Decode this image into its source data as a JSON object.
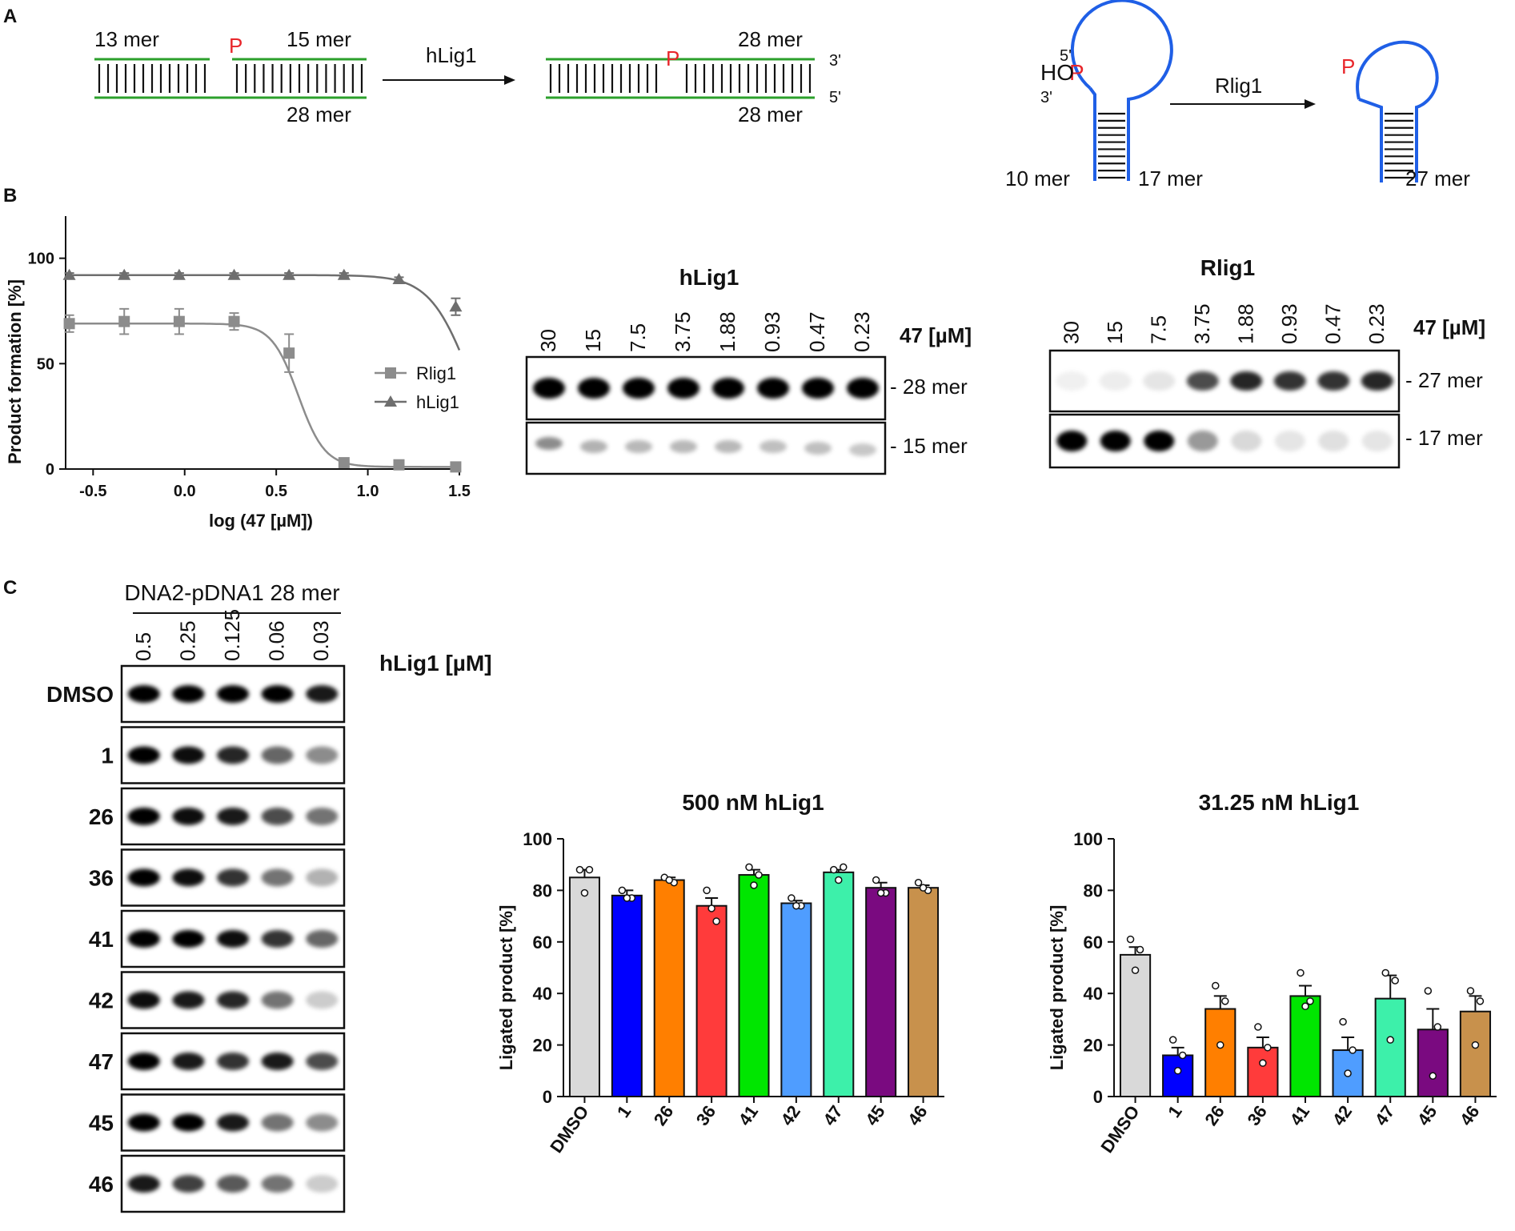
{
  "panel_labels": {
    "a": "A",
    "b": "B",
    "c": "C"
  },
  "scheme_hlig1": {
    "left_top_left": "13 mer",
    "left_top_right": "15 mer",
    "left_bottom": "28 mer",
    "phosphate": "P",
    "enzyme": "hLig1",
    "right_top": "28 mer",
    "right_bottom": "28 mer",
    "end_3": "3'",
    "end_5": "5'"
  },
  "scheme_rlig1": {
    "five_prime": "5'",
    "phosphate": "P",
    "hydroxyl": "HO",
    "three_prime": "3'",
    "left_arm": "10 mer",
    "right_arm": "17 mer",
    "enzyme": "Rlig1",
    "product": "27 mer"
  },
  "gel_hlig1": {
    "title": "hLig1",
    "conc_unit": "47 [µM]",
    "lanes": [
      "30",
      "15",
      "7.5",
      "3.75",
      "1.88",
      "0.93",
      "0.47",
      "0.23"
    ],
    "top_band": "- 28 mer",
    "bottom_band": "- 15 mer",
    "top_intensity": [
      1,
      1,
      1,
      1,
      1,
      1,
      1,
      1
    ],
    "bottom_intensity": [
      0.45,
      0.3,
      0.28,
      0.28,
      0.28,
      0.25,
      0.25,
      0.22
    ]
  },
  "gel_rlig1": {
    "title": "Rlig1",
    "conc_unit": "47 [µM]",
    "lanes": [
      "30",
      "15",
      "7.5",
      "3.75",
      "1.88",
      "0.93",
      "0.47",
      "0.23"
    ],
    "top_band": "- 27 mer",
    "bottom_band": "- 17 mer",
    "top_intensity": [
      0.06,
      0.07,
      0.1,
      0.7,
      0.85,
      0.8,
      0.8,
      0.85
    ],
    "bottom_intensity": [
      1,
      1,
      1,
      0.4,
      0.15,
      0.1,
      0.12,
      0.1
    ]
  },
  "gel_c": {
    "header": "DNA2-pDNA1 28 mer",
    "conc_unit": "hLig1 [µM]",
    "lanes": [
      "0.5",
      "0.25",
      "0.125",
      "0.06",
      "0.03"
    ],
    "rows": [
      {
        "label": "DMSO",
        "intensity": [
          1,
          1,
          1,
          1,
          0.9
        ]
      },
      {
        "label": "1",
        "intensity": [
          1,
          0.95,
          0.85,
          0.6,
          0.45
        ]
      },
      {
        "label": "26",
        "intensity": [
          1,
          0.95,
          0.9,
          0.7,
          0.55
        ]
      },
      {
        "label": "36",
        "intensity": [
          1,
          0.95,
          0.8,
          0.55,
          0.3
        ]
      },
      {
        "label": "41",
        "intensity": [
          1,
          1,
          0.95,
          0.8,
          0.6
        ]
      },
      {
        "label": "42",
        "intensity": [
          0.95,
          0.9,
          0.85,
          0.55,
          0.2
        ]
      },
      {
        "label": "47",
        "intensity": [
          1,
          0.9,
          0.8,
          0.9,
          0.7
        ]
      },
      {
        "label": "45",
        "intensity": [
          1,
          1,
          0.9,
          0.55,
          0.45
        ]
      },
      {
        "label": "46",
        "intensity": [
          0.9,
          0.75,
          0.65,
          0.55,
          0.2
        ]
      }
    ]
  },
  "chart_data": [
    {
      "type": "line",
      "title": "",
      "xlabel": "log (47 [µM])",
      "ylabel": "Product formation [%]",
      "xlim": [
        -0.65,
        1.5
      ],
      "ylim": [
        0,
        120
      ],
      "xticks": [
        "-0.5",
        "0.0",
        "0.5",
        "1.0",
        "1.5"
      ],
      "yticks": [
        "0",
        "50",
        "100"
      ],
      "legend_position": "center-right",
      "series": [
        {
          "name": "Rlig1",
          "color": "#8c8c8c",
          "marker": "square",
          "x": [
            -0.63,
            -0.33,
            -0.03,
            0.27,
            0.57,
            0.87,
            1.17,
            1.48
          ],
          "y": [
            69,
            70,
            70,
            70,
            55,
            3,
            2,
            1
          ],
          "err": [
            4,
            6,
            6,
            4,
            9,
            1,
            1,
            1
          ]
        },
        {
          "name": "hLig1",
          "color": "#6e6e6e",
          "marker": "triangle",
          "x": [
            -0.63,
            -0.33,
            -0.03,
            0.27,
            0.57,
            0.87,
            1.17,
            1.48
          ],
          "y": [
            92,
            92,
            92,
            92,
            92,
            92,
            90,
            77
          ],
          "err": [
            1,
            1,
            1,
            1,
            1,
            1,
            1,
            4
          ]
        }
      ]
    },
    {
      "type": "bar",
      "title": "500 nM hLig1",
      "xlabel": "",
      "ylabel": "Ligated product [%]",
      "ylim": [
        0,
        100
      ],
      "yticks": [
        "0",
        "20",
        "40",
        "60",
        "80",
        "100"
      ],
      "categories": [
        "DMSO",
        "1",
        "26",
        "36",
        "41",
        "42",
        "47",
        "45",
        "46"
      ],
      "colors": [
        "#d9d9d9",
        "#0000ff",
        "#ff7f00",
        "#ff3b3b",
        "#00e600",
        "#4f9dff",
        "#3df0aa",
        "#7a0a80",
        "#c8914c"
      ],
      "values": [
        85,
        78,
        84,
        74,
        86,
        75,
        87,
        81,
        81
      ],
      "err": [
        3,
        2,
        1,
        3,
        2,
        1,
        1,
        2,
        1
      ],
      "points": [
        [
          88,
          88,
          79
        ],
        [
          80,
          77,
          77
        ],
        [
          85,
          83,
          84
        ],
        [
          80,
          68,
          73
        ],
        [
          89,
          86,
          82
        ],
        [
          77,
          74,
          74
        ],
        [
          88,
          89,
          84
        ],
        [
          84,
          79,
          79
        ],
        [
          83,
          80,
          81
        ]
      ]
    },
    {
      "type": "bar",
      "title": "31.25 nM hLig1",
      "xlabel": "",
      "ylabel": "Ligated product [%]",
      "ylim": [
        0,
        100
      ],
      "yticks": [
        "0",
        "20",
        "40",
        "60",
        "80",
        "100"
      ],
      "categories": [
        "DMSO",
        "1",
        "26",
        "36",
        "41",
        "42",
        "47",
        "45",
        "46"
      ],
      "colors": [
        "#d9d9d9",
        "#0000ff",
        "#ff7f00",
        "#ff3b3b",
        "#00e600",
        "#4f9dff",
        "#3df0aa",
        "#7a0a80",
        "#c8914c"
      ],
      "values": [
        55,
        16,
        34,
        19,
        39,
        18,
        38,
        26,
        33
      ],
      "err": [
        3,
        3,
        5,
        4,
        4,
        5,
        9,
        8,
        6
      ],
      "points": [
        [
          61,
          57,
          49
        ],
        [
          22,
          16,
          10
        ],
        [
          43,
          37,
          20
        ],
        [
          27,
          19,
          13
        ],
        [
          48,
          37,
          35
        ],
        [
          29,
          18,
          9
        ],
        [
          48,
          45,
          22
        ],
        [
          41,
          27,
          8
        ],
        [
          41,
          37,
          20
        ]
      ]
    }
  ]
}
